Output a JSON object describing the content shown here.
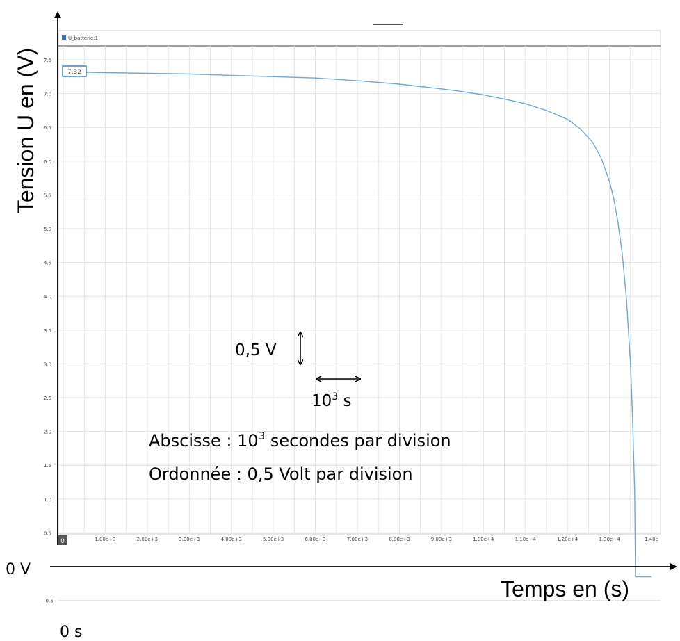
{
  "chart_data": {
    "type": "line",
    "ylabel": "Tension U en (V)",
    "xlabel": "Temps en (s)",
    "legend": "U_batterie:1",
    "legend_position": "top-left",
    "cursor_value": "7.32",
    "grid": true,
    "xlim": [
      0,
      14000
    ],
    "ylim": [
      -0.5,
      7.5
    ],
    "x_ticks": [
      {
        "value": 0,
        "label": "0"
      },
      {
        "value": 1000,
        "label": "1.00e+3"
      },
      {
        "value": 2000,
        "label": "2.00e+3"
      },
      {
        "value": 3000,
        "label": "3.00e+3"
      },
      {
        "value": 4000,
        "label": "4.00e+3"
      },
      {
        "value": 5000,
        "label": "5.00e+3"
      },
      {
        "value": 6000,
        "label": "6.00e+3"
      },
      {
        "value": 7000,
        "label": "7.00e+3"
      },
      {
        "value": 8000,
        "label": "8.00e+3"
      },
      {
        "value": 9000,
        "label": "9.00e+3"
      },
      {
        "value": 10000,
        "label": "1.00e+4"
      },
      {
        "value": 11000,
        "label": "1.10e+4"
      },
      {
        "value": 12000,
        "label": "1.20e+4"
      },
      {
        "value": 13000,
        "label": "1.30e+4"
      },
      {
        "value": 14000,
        "label": "1.40e"
      }
    ],
    "y_ticks": [
      {
        "value": 7.5,
        "label": "7.5"
      },
      {
        "value": 7.0,
        "label": "7.0"
      },
      {
        "value": 6.5,
        "label": "6.5"
      },
      {
        "value": 6.0,
        "label": "6.0"
      },
      {
        "value": 5.5,
        "label": "5.5"
      },
      {
        "value": 5.0,
        "label": "5.0"
      },
      {
        "value": 4.5,
        "label": "4.5"
      },
      {
        "value": 4.0,
        "label": "4.0"
      },
      {
        "value": 3.5,
        "label": "3.5"
      },
      {
        "value": 3.0,
        "label": "3.0"
      },
      {
        "value": 2.5,
        "label": "2.5"
      },
      {
        "value": 2.0,
        "label": "2.0"
      },
      {
        "value": 1.5,
        "label": "1.5"
      },
      {
        "value": 1.0,
        "label": "1.0"
      },
      {
        "value": 0.5,
        "label": "0.5"
      },
      {
        "value": -0.5,
        "label": "-0.5"
      }
    ],
    "series": [
      {
        "name": "U_batterie:1",
        "color": "#6fa8d6",
        "x": [
          0,
          1000,
          2000,
          3000,
          4000,
          5000,
          6000,
          7000,
          8000,
          9000,
          9500,
          10000,
          10500,
          11000,
          11500,
          12000,
          12300,
          12600,
          12800,
          13000,
          13100,
          13200,
          13300,
          13400,
          13500,
          13550,
          13600,
          13620,
          13800,
          14000
        ],
        "y": [
          7.32,
          7.31,
          7.3,
          7.29,
          7.27,
          7.25,
          7.23,
          7.19,
          7.14,
          7.07,
          7.03,
          6.98,
          6.92,
          6.85,
          6.75,
          6.62,
          6.48,
          6.28,
          6.05,
          5.7,
          5.45,
          5.1,
          4.65,
          4.0,
          3.0,
          2.2,
          1.1,
          -0.15,
          -0.15,
          -0.15
        ]
      }
    ],
    "annotations": {
      "origin_y": "0 V",
      "origin_x": "0 s",
      "scale_y": "0,5 V",
      "scale_x_base": "10",
      "scale_x_exp": "3",
      "scale_x_unit": " s",
      "line1_a": "Abscisse : 10",
      "line1_sup": "3",
      "line1_b": " secondes par division",
      "line2": "Ordonnée : 0,5 Volt par division"
    }
  }
}
